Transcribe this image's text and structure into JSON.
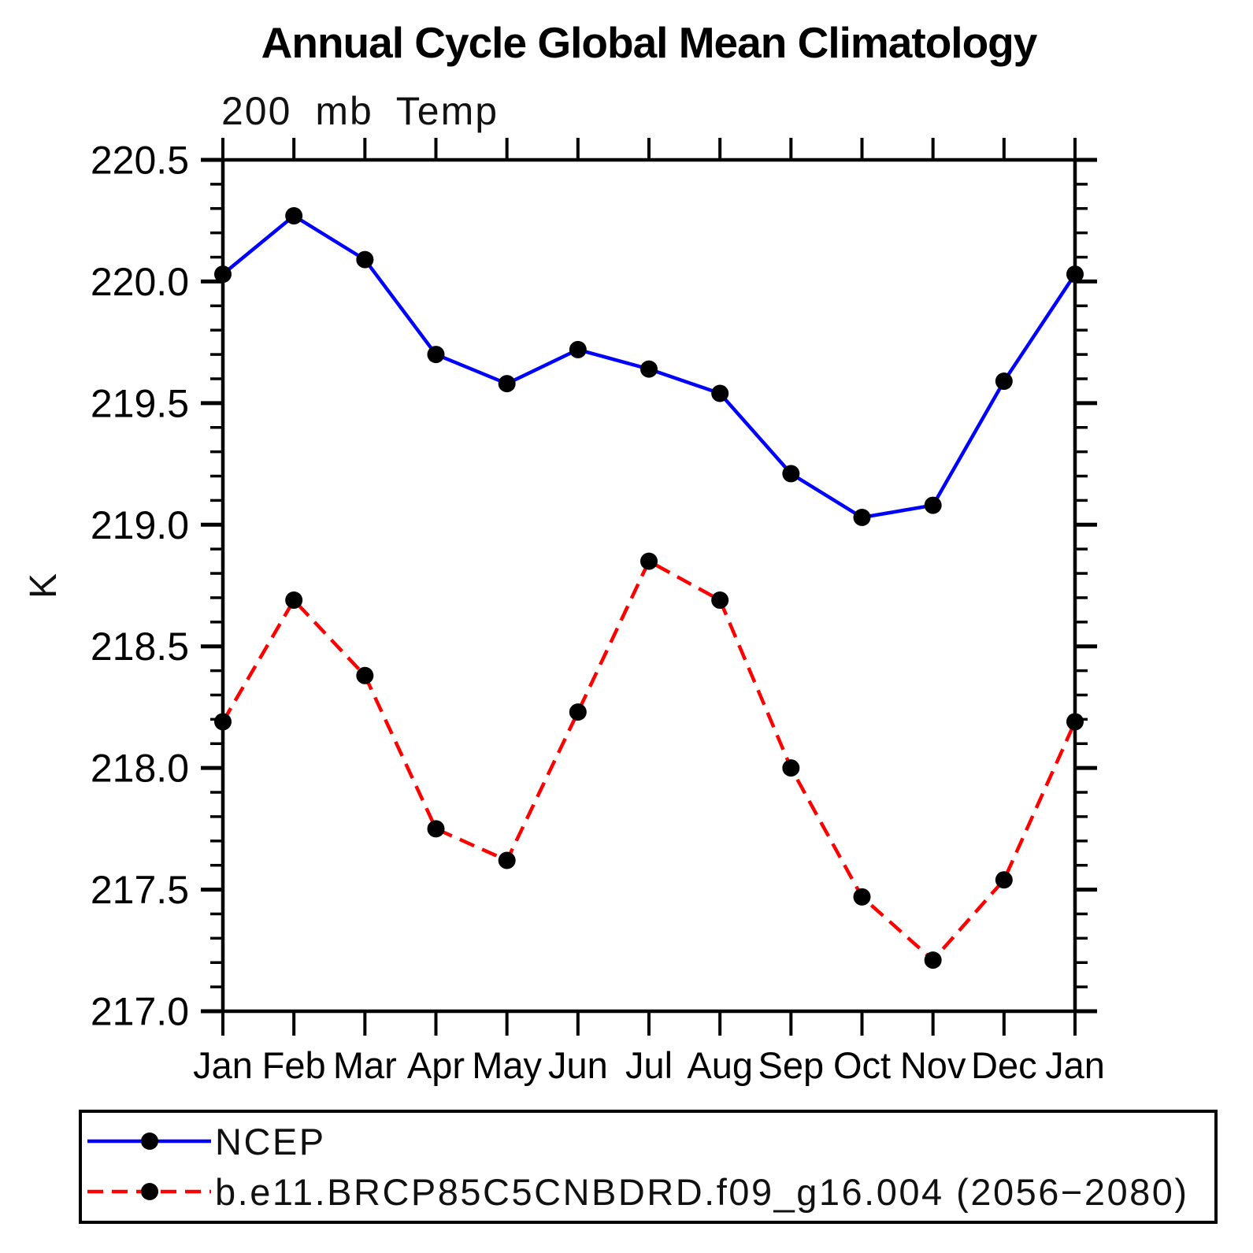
{
  "title": "Annual Cycle Global Mean Climatology",
  "subtitle": "200 mb Temp",
  "chart_data": {
    "type": "line",
    "categories": [
      "Jan",
      "Feb",
      "Mar",
      "Apr",
      "May",
      "Jun",
      "Jul",
      "Aug",
      "Sep",
      "Oct",
      "Nov",
      "Dec",
      "Jan"
    ],
    "series": [
      {
        "name": "NCEP",
        "color": "#0000ff",
        "line_style": "solid",
        "values": [
          220.03,
          220.27,
          220.09,
          219.7,
          219.58,
          219.72,
          219.64,
          219.54,
          219.21,
          219.03,
          219.08,
          219.59,
          220.03
        ]
      },
      {
        "name": "b.e11.BRCP85C5CNBDRD.f09_g16.004 (2056−2080)",
        "color": "#ff0000",
        "line_style": "dashed",
        "values": [
          218.19,
          218.69,
          218.38,
          217.75,
          217.62,
          218.23,
          218.85,
          218.69,
          218.0,
          217.47,
          217.21,
          217.54,
          218.19
        ]
      }
    ],
    "xlabel": "",
    "ylabel": "K",
    "ylim": [
      217.0,
      220.5
    ],
    "ytick_labels": [
      "220.5",
      "220.0",
      "219.5",
      "219.0",
      "218.5",
      "218.0",
      "217.5",
      "217.0"
    ],
    "ytick_minor_interval": 0.1,
    "grid": false,
    "marker": "filled-circle",
    "marker_color": "#000000",
    "legend_position": "bottom-left"
  }
}
